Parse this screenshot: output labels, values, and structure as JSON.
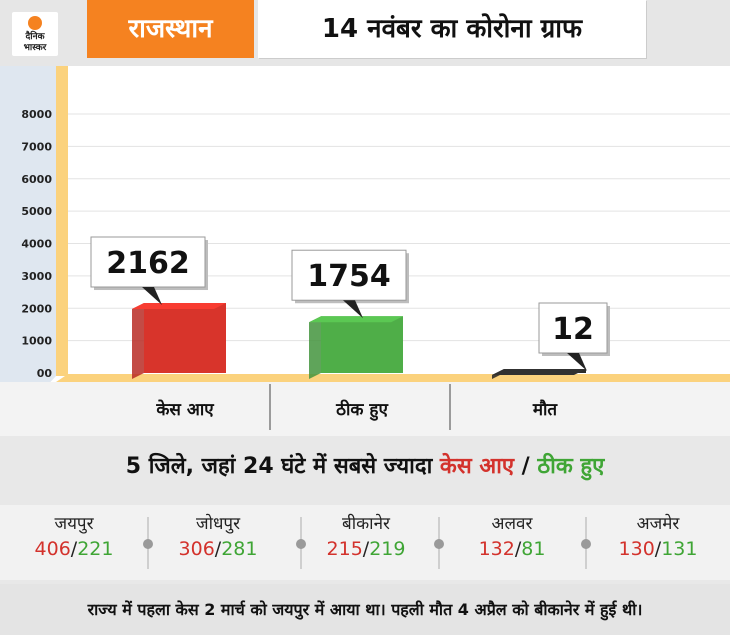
{
  "header": {
    "logo_line1": "दैनिक",
    "logo_line2": "भास्कर",
    "state": "राजस्थान",
    "title": "14 नवंबर का कोरोना ग्राफ"
  },
  "chart_data": {
    "type": "bar",
    "categories": [
      "केस आए",
      "ठीक हुए",
      "मौत"
    ],
    "values": [
      2162,
      1754,
      12
    ],
    "value_labels": [
      "2162",
      "1754",
      "12"
    ],
    "colors": [
      "#d8342b",
      "#4fae48",
      "#2b2b2b"
    ],
    "yticks": [
      "00",
      "1000",
      "2000",
      "3000",
      "4000",
      "5000",
      "6000",
      "7000",
      "8000"
    ],
    "ylim": [
      0,
      8000
    ],
    "grid": true
  },
  "subtitle": {
    "prefix": "5 जिले, जहां 24 घंटे में सबसे ज्यादा ",
    "cases": "केस आए",
    "sep": " / ",
    "recovered": "ठीक हुए"
  },
  "districts": [
    {
      "name": "जयपुर",
      "cases": "406",
      "slash": "/",
      "recovered": "221"
    },
    {
      "name": "जोधपुर",
      "cases": "306",
      "slash": "/",
      "recovered": "281"
    },
    {
      "name": "बीकानेर",
      "cases": "215",
      "slash": "/",
      "recovered": "219"
    },
    {
      "name": "अलवर",
      "cases": "132",
      "slash": "/",
      "recovered": "81"
    },
    {
      "name": "अजमेर",
      "cases": "130",
      "slash": "/",
      "recovered": "131"
    }
  ],
  "footer": "राज्य में पहला केस 2 मार्च को जयपुर में आया था। पहली मौत 4 अप्रैल को बीकानेर में हुई थी।",
  "colors": {
    "accent": "#f58220",
    "cases": "#d3322c",
    "recovered": "#3fa535"
  }
}
